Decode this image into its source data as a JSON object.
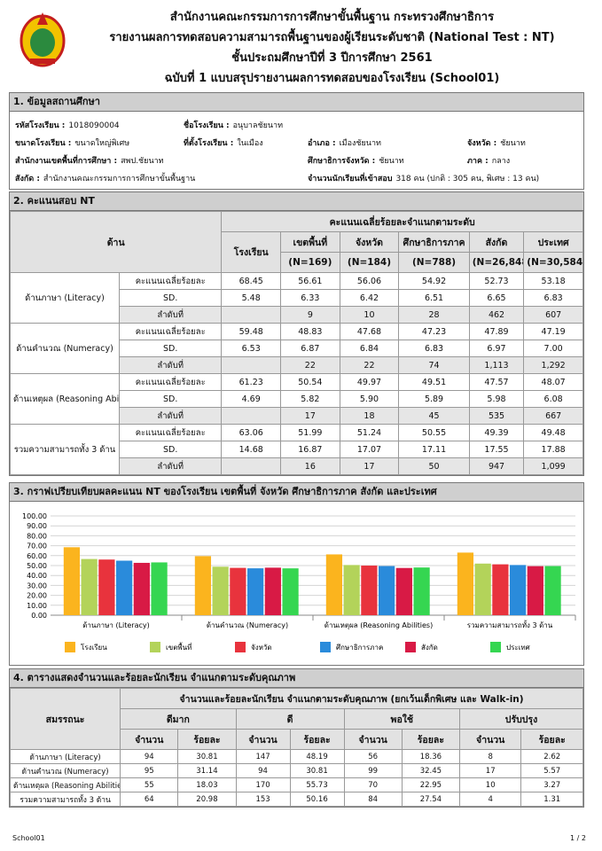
{
  "header": {
    "lines": [
      "สำนักงานคณะกรรมการการศึกษาขั้นพื้นฐาน กระทรวงศึกษาธิการ",
      "รายงานผลการทดสอบความสามารถพื้นฐานของผู้เรียนระดับชาติ (National Test : NT)",
      "ชั้นประถมศึกษาปีที่ 3  ปีการศึกษา 2561",
      "ฉบับที่ 1 แบบสรุปรายงานผลการทดสอบของโรงเรียน (School01)"
    ]
  },
  "section1": {
    "title": "1. ข้อมูลสถานศึกษา",
    "rows": [
      [
        {
          "label": "รหัสโรงเรียน :",
          "value": "1018090004"
        },
        {
          "label": "ชื่อโรงเรียน :",
          "value": "อนุบาลชัยนาท"
        },
        null,
        null
      ],
      [
        {
          "label": "ขนาดโรงเรียน :",
          "value": "ขนาดใหญ่พิเศษ"
        },
        {
          "label": "ที่ตั้งโรงเรียน :",
          "value": "ในเมือง"
        },
        {
          "label": "อำเภอ :",
          "value": "เมืองชัยนาท"
        },
        {
          "label": "จังหวัด :",
          "value": "ชัยนาท"
        }
      ],
      [
        {
          "label": "สำนักงานเขตพื้นที่การศึกษา :",
          "value": "สพป.ชัยนาท"
        },
        null,
        {
          "label": "ศึกษาธิการจังหวัด :",
          "value": "ชัยนาท"
        },
        {
          "label": "ภาค :",
          "value": "กลาง"
        }
      ],
      [
        {
          "label": "สังกัด :",
          "value": "สำนักงานคณะกรรมการการศึกษาขั้นพื้นฐาน"
        },
        null,
        {
          "label": "จำนวนนักเรียนที่เข้าสอบ",
          "value": "318 คน (ปกติ : 305 คน, พิเศษ : 13 คน)"
        },
        null
      ]
    ]
  },
  "section2": {
    "title": "2. คะแนนสอบ NT",
    "domain_header": "ด้าน",
    "group_header": "คะแนนเฉลี่ยร้อยละจำแนกตามระดับ",
    "columns": [
      {
        "name": "โรงเรียน"
      },
      {
        "name": "เขตพื้นที่",
        "n": "(N=169)"
      },
      {
        "name": "จังหวัด",
        "n": "(N=184)"
      },
      {
        "name": "ศึกษาธิการภาค",
        "n": "(N=788)"
      },
      {
        "name": "สังกัด",
        "n": "(N=26,848)"
      },
      {
        "name": "ประเทศ",
        "n": "(N=30,584)"
      }
    ],
    "rows": [
      {
        "domain": "ด้านภาษา (Literacy)",
        "items": [
          {
            "label": "คะแนนเฉลี่ยร้อยละ",
            "cells": [
              "68.45",
              "56.61",
              "56.06",
              "54.92",
              "52.73",
              "53.18"
            ]
          },
          {
            "label": "SD.",
            "cells": [
              "5.48",
              "6.33",
              "6.42",
              "6.51",
              "6.65",
              "6.83"
            ]
          },
          {
            "label": "ลำดับที่",
            "cells": [
              null,
              "9",
              "10",
              "28",
              "462",
              "607"
            ]
          }
        ]
      },
      {
        "domain": "ด้านคำนวณ (Numeracy)",
        "items": [
          {
            "label": "คะแนนเฉลี่ยร้อยละ",
            "cells": [
              "59.48",
              "48.83",
              "47.68",
              "47.23",
              "47.89",
              "47.19"
            ]
          },
          {
            "label": "SD.",
            "cells": [
              "6.53",
              "6.87",
              "6.84",
              "6.83",
              "6.97",
              "7.00"
            ]
          },
          {
            "label": "ลำดับที่",
            "cells": [
              null,
              "22",
              "22",
              "74",
              "1,113",
              "1,292"
            ]
          }
        ]
      },
      {
        "domain": "ด้านเหตุผล (Reasoning Abilities)",
        "items": [
          {
            "label": "คะแนนเฉลี่ยร้อยละ",
            "cells": [
              "61.23",
              "50.54",
              "49.97",
              "49.51",
              "47.57",
              "48.07"
            ]
          },
          {
            "label": "SD.",
            "cells": [
              "4.69",
              "5.82",
              "5.90",
              "5.89",
              "5.98",
              "6.08"
            ]
          },
          {
            "label": "ลำดับที่",
            "cells": [
              null,
              "17",
              "18",
              "45",
              "535",
              "667"
            ]
          }
        ]
      },
      {
        "domain": "รวมความสามารถทั้ง 3 ด้าน",
        "items": [
          {
            "label": "คะแนนเฉลี่ยร้อยละ",
            "cells": [
              "63.06",
              "51.99",
              "51.24",
              "50.55",
              "49.39",
              "49.48"
            ]
          },
          {
            "label": "SD.",
            "cells": [
              "14.68",
              "16.87",
              "17.07",
              "17.11",
              "17.55",
              "17.88"
            ]
          },
          {
            "label": "ลำดับที่",
            "cells": [
              null,
              "16",
              "17",
              "50",
              "947",
              "1,099"
            ]
          }
        ]
      }
    ]
  },
  "section3": {
    "title": "3. กราฟเปรียบเทียบผลคะแนน NT ของโรงเรียน เขตพื้นที่ จังหวัด ศึกษาธิการภาค สังกัด และประเทศ"
  },
  "chart_data": {
    "type": "bar",
    "categories": [
      "ด้านภาษา (Literacy)",
      "ด้านคำนวณ (Numeracy)",
      "ด้านเหตุผล (Reasoning Abilities)",
      "รวมความสามารถทั้ง 3 ด้าน"
    ],
    "series": [
      {
        "name": "โรงเรียน",
        "color": "#fbb41e",
        "values": [
          68.45,
          59.48,
          61.23,
          63.06
        ]
      },
      {
        "name": "เขตพื้นที่",
        "color": "#b3d35a",
        "values": [
          56.61,
          48.83,
          50.54,
          51.99
        ]
      },
      {
        "name": "จังหวัด",
        "color": "#e8333d",
        "values": [
          56.06,
          47.68,
          49.97,
          51.24
        ]
      },
      {
        "name": "ศึกษาธิการภาค",
        "color": "#2a8bdb",
        "values": [
          54.92,
          47.23,
          49.51,
          50.55
        ]
      },
      {
        "name": "สังกัด",
        "color": "#d81a45",
        "values": [
          52.73,
          47.89,
          47.57,
          49.39
        ]
      },
      {
        "name": "ประเทศ",
        "color": "#35d651",
        "values": [
          53.18,
          47.19,
          48.07,
          49.48
        ]
      }
    ],
    "ylim": [
      0,
      100
    ],
    "yticks": [
      {
        "value": 0,
        "label": "0.00"
      },
      {
        "value": 10,
        "label": "10.00"
      },
      {
        "value": 20,
        "label": "20.00"
      },
      {
        "value": 30,
        "label": "30.00"
      },
      {
        "value": 40,
        "label": "40.00"
      },
      {
        "value": 50,
        "label": "50.00"
      },
      {
        "value": 60,
        "label": "60.00"
      },
      {
        "value": 70,
        "label": "70.00"
      },
      {
        "value": 80,
        "label": "80.00"
      },
      {
        "value": 90,
        "label": "90.00"
      },
      {
        "value": 100,
        "label": "100.00"
      }
    ],
    "grid": true,
    "legend": "bottom"
  },
  "section4": {
    "title": "4. ตารางแสดงจำนวนและร้อยละนักเรียน จำแนกตามระดับคุณภาพ",
    "row_header": "สมรรถนะ",
    "group_header": "จำนวนและร้อยละนักเรียน จำแนกตามระดับคุณภาพ (ยกเว้นเด็กพิเศษ และ Walk-in)",
    "levels": [
      "ดีมาก",
      "ดี",
      "พอใช้",
      "ปรับปรุง"
    ],
    "sub_headers": [
      "จำนวน",
      "ร้อยละ"
    ],
    "rows": [
      {
        "label": "ด้านภาษา (Literacy)",
        "cells": [
          "94",
          "30.81",
          "147",
          "48.19",
          "56",
          "18.36",
          "8",
          "2.62"
        ]
      },
      {
        "label": "ด้านคำนวณ (Numeracy)",
        "cells": [
          "95",
          "31.14",
          "94",
          "30.81",
          "99",
          "32.45",
          "17",
          "5.57"
        ]
      },
      {
        "label": "ด้านเหตุผล (Reasoning Abilities)",
        "cells": [
          "55",
          "18.03",
          "170",
          "55.73",
          "70",
          "22.95",
          "10",
          "3.27"
        ]
      },
      {
        "label": "รวมความสามารถทั้ง 3 ด้าน",
        "cells": [
          "64",
          "20.98",
          "153",
          "50.16",
          "84",
          "27.54",
          "4",
          "1.31"
        ]
      }
    ]
  },
  "footer": {
    "left": "School01",
    "right": "1 / 2"
  }
}
